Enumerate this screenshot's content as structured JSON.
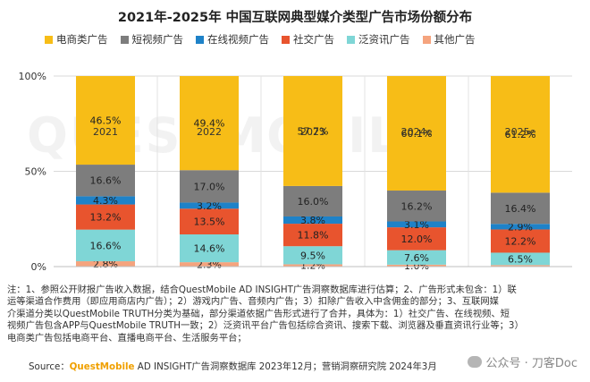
{
  "page": {
    "title": "2021年-2025年 中国互联网典型媒介类型广告市场份额分布"
  },
  "chart_data": {
    "type": "bar",
    "stacked": true,
    "categories": [
      "2021",
      "2022",
      "2023",
      "2024e",
      "2025e"
    ],
    "series": [
      {
        "name": "其他广告",
        "color": "#f5a47e",
        "values": [
          2.8,
          2.3,
          1.2,
          1.0,
          0.8
        ],
        "labels": [
          "2.8%",
          "2.3%",
          "1.2%",
          "1.0%",
          ""
        ]
      },
      {
        "name": "泛资讯广告",
        "color": "#7fd6d6",
        "values": [
          16.6,
          14.6,
          9.5,
          7.6,
          6.5
        ],
        "labels": [
          "16.6%",
          "14.6%",
          "9.5%",
          "7.6%",
          "6.5%"
        ]
      },
      {
        "name": "社交广告",
        "color": "#e8542e",
        "values": [
          13.2,
          13.5,
          11.8,
          12.0,
          12.2
        ],
        "labels": [
          "13.2%",
          "13.5%",
          "11.8%",
          "12.0%",
          "12.2%"
        ]
      },
      {
        "name": "在线视频广告",
        "color": "#1e82c8",
        "values": [
          4.3,
          3.2,
          3.8,
          3.1,
          2.9
        ],
        "labels": [
          "4.3%",
          "3.2%",
          "3.8%",
          "3.1%",
          "2.9%"
        ]
      },
      {
        "name": "短视频广告",
        "color": "#7d7d7d",
        "values": [
          16.6,
          17.0,
          16.0,
          16.2,
          16.4
        ],
        "labels": [
          "16.6%",
          "17.0%",
          "16.0%",
          "16.2%",
          "16.4%"
        ]
      },
      {
        "name": "电商类广告",
        "color": "#f7bd17",
        "values": [
          46.5,
          49.4,
          57.7,
          60.1,
          61.2
        ],
        "labels": [
          "46.5%",
          "49.4%",
          "57.7%",
          "60.1%",
          "61.2%"
        ]
      }
    ],
    "legend_order": [
      "电商类广告",
      "短视频广告",
      "在线视频广告",
      "社交广告",
      "泛资讯广告",
      "其他广告"
    ],
    "ylim": [
      0,
      100
    ],
    "yticks": [
      "0%",
      "50%",
      "100%"
    ],
    "legend_position": "top"
  },
  "notes": {
    "lines": [
      "注：1、参照公开财报广告收入数据，结合QuestMobile AD INSIGHT广告洞察数据库进行估算；2、广告形式未包含：1）联",
      "运等渠道合作费用（即应用商店内广告）；2）游戏内广告、音频内广告；3）扣除广告收入中含佣金的部分；3、互联网媒",
      "介渠道分类以QuestMobile TRUTH分类为基础，部分渠道依据广告形式进行了合并，具体为：1）社交广告、在线视频、短",
      "视频广告包含APP与QuestMobile TRUTH一致；2）泛资讯平台广告包括综合资讯、搜索下载、浏览器及垂直资讯行业等；3）",
      "电商类广告包括电商平台、直播电商平台、生活服务平台；"
    ]
  },
  "source": {
    "prefix": "Source：",
    "brand": "QuestMobile",
    "rest": " AD INSIGHT广告洞察数据库 2023年12月；营销洞察研究院 2024年3月"
  },
  "watermark": {
    "text": "公众号 · 刀客Doc"
  },
  "background_logo": "QUESTMOBILE"
}
